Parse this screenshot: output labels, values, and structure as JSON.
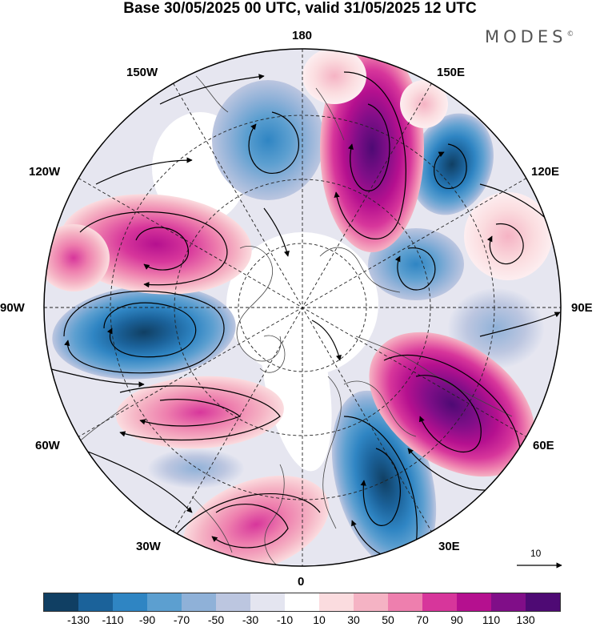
{
  "title": "Base 30/05/2025 00 UTC, valid 31/05/2025 12 UTC",
  "brand": "MODES",
  "brand_mark": "©",
  "longitude_labels": {
    "lon_180": "180",
    "lon_150e": "150E",
    "lon_120e": "120E",
    "lon_90e": "90E",
    "lon_60e": "60E",
    "lon_30e": "30E",
    "lon_0": "0",
    "lon_30w": "30W",
    "lon_60w": "60W",
    "lon_90w": "90W",
    "lon_120w": "120W",
    "lon_150w": "150W"
  },
  "reference_vector_label": "10",
  "colorbar": {
    "labels": [
      "-130",
      "-110",
      "-90",
      "-70",
      "-50",
      "-30",
      "-10",
      "10",
      "30",
      "50",
      "70",
      "90",
      "110",
      "130"
    ],
    "colors": [
      "#103f63",
      "#1b629a",
      "#2f85c3",
      "#5c9fd0",
      "#8fb1d8",
      "#bcc6e0",
      "#e4e5f0",
      "#ffffff",
      "#fbdcdf",
      "#f5b3c4",
      "#ee7fae",
      "#d7369b",
      "#b5108f",
      "#800e88",
      "#4e0a74"
    ]
  },
  "map": {
    "projection": "north polar stereographic",
    "features": [
      "coastlines",
      "lat-lon grid",
      "streamlines",
      "anomaly shading"
    ]
  }
}
